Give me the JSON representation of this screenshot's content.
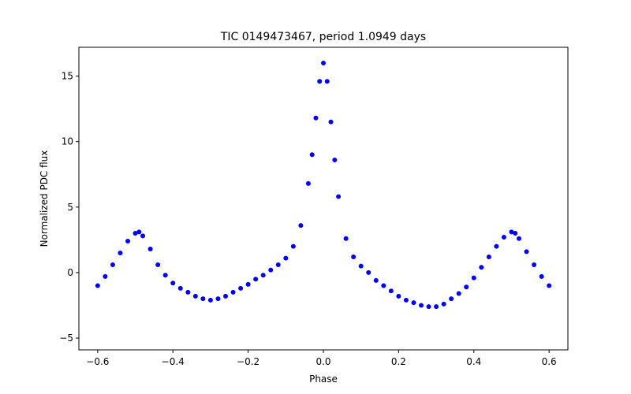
{
  "chart_data": {
    "type": "scatter",
    "title": "TIC 0149473467, period 1.0949 days",
    "xlabel": "Phase",
    "ylabel": "Normalized PDC flux",
    "xlim": [
      -0.65,
      0.65
    ],
    "ylim": [
      -5.9,
      17.2
    ],
    "xticks": [
      -0.6,
      -0.4,
      -0.2,
      0.0,
      0.2,
      0.4,
      0.6
    ],
    "xtick_labels": [
      "−0.6",
      "−0.4",
      "−0.2",
      "0.0",
      "0.2",
      "0.4",
      "0.6"
    ],
    "yticks": [
      -5,
      0,
      5,
      10,
      15
    ],
    "ytick_labels": [
      "−5",
      "0",
      "5",
      "10",
      "15"
    ],
    "grid": false,
    "marker_color": "#0000ff",
    "series": [
      {
        "name": "",
        "x": [
          -0.6,
          -0.58,
          -0.56,
          -0.54,
          -0.52,
          -0.5,
          -0.49,
          -0.48,
          -0.46,
          -0.44,
          -0.42,
          -0.4,
          -0.38,
          -0.36,
          -0.34,
          -0.32,
          -0.3,
          -0.28,
          -0.26,
          -0.24,
          -0.22,
          -0.2,
          -0.18,
          -0.16,
          -0.14,
          -0.12,
          -0.1,
          -0.08,
          -0.06,
          -0.04,
          -0.03,
          -0.02,
          -0.01,
          0.0,
          0.01,
          0.02,
          0.03,
          0.04,
          0.06,
          0.08,
          0.1,
          0.12,
          0.14,
          0.16,
          0.18,
          0.2,
          0.22,
          0.24,
          0.26,
          0.28,
          0.3,
          0.32,
          0.34,
          0.36,
          0.38,
          0.4,
          0.42,
          0.44,
          0.46,
          0.48,
          0.5,
          0.51,
          0.52,
          0.54,
          0.56,
          0.58,
          0.6
        ],
        "y": [
          -1.0,
          -0.3,
          0.6,
          1.5,
          2.4,
          3.0,
          3.1,
          2.8,
          1.8,
          0.6,
          -0.2,
          -0.8,
          -1.2,
          -1.5,
          -1.8,
          -2.0,
          -2.1,
          -2.0,
          -1.8,
          -1.5,
          -1.2,
          -0.9,
          -0.5,
          -0.2,
          0.2,
          0.6,
          1.1,
          2.0,
          3.6,
          6.8,
          9.0,
          11.8,
          14.6,
          16.0,
          14.6,
          11.5,
          8.6,
          5.8,
          2.6,
          1.2,
          0.5,
          0.0,
          -0.6,
          -1.0,
          -1.4,
          -1.8,
          -2.1,
          -2.3,
          -2.5,
          -2.6,
          -2.6,
          -2.4,
          -2.0,
          -1.6,
          -1.1,
          -0.4,
          0.4,
          1.2,
          2.0,
          2.7,
          3.1,
          3.0,
          2.6,
          1.6,
          0.6,
          -0.3,
          -1.0
        ]
      }
    ]
  }
}
